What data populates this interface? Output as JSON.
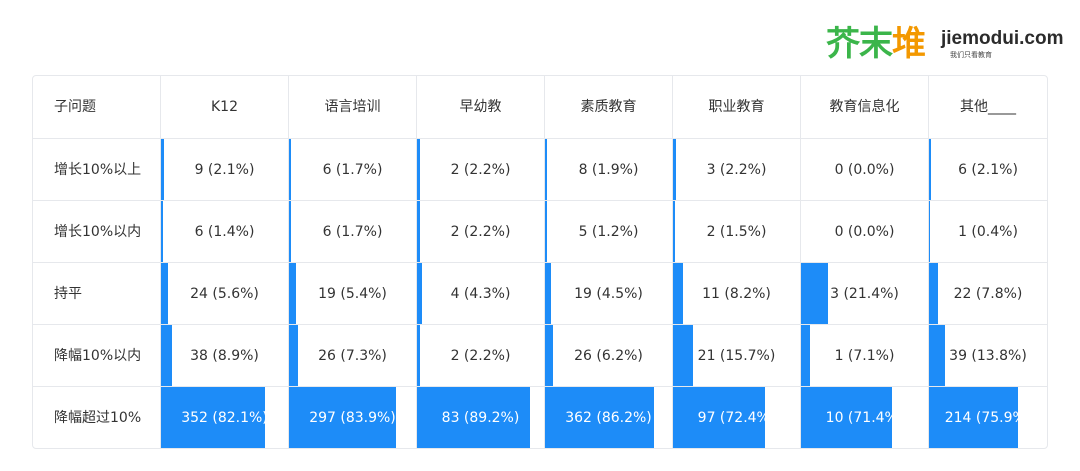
{
  "brand": {
    "logo_cn": [
      "芥",
      "末",
      "堆"
    ],
    "logo_en": "jiemodui.com",
    "logo_sub": "我们只看教育",
    "colors": {
      "green": "#3bb54a",
      "orange": "#f39800"
    }
  },
  "chart_data": {
    "type": "table",
    "corner_label": "子问题",
    "columns": [
      "K12",
      "语言培训",
      "早幼教",
      "素质教育",
      "职业教育",
      "教育信息化",
      "其他____"
    ],
    "rows": [
      {
        "label": "增长10%以上",
        "counts": [
          9,
          6,
          2,
          8,
          3,
          0,
          6
        ],
        "percents": [
          2.1,
          1.7,
          2.2,
          1.9,
          2.2,
          0.0,
          2.1
        ]
      },
      {
        "label": "增长10%以内",
        "counts": [
          6,
          6,
          2,
          5,
          2,
          0,
          1
        ],
        "percents": [
          1.4,
          1.7,
          2.2,
          1.2,
          1.5,
          0.0,
          0.4
        ]
      },
      {
        "label": "持平",
        "counts": [
          24,
          19,
          4,
          19,
          11,
          3,
          22
        ],
        "percents": [
          5.6,
          5.4,
          4.3,
          4.5,
          8.2,
          21.4,
          7.8
        ]
      },
      {
        "label": "降幅10%以内",
        "counts": [
          38,
          26,
          2,
          26,
          21,
          1,
          39
        ],
        "percents": [
          8.9,
          7.3,
          2.2,
          6.2,
          15.7,
          7.1,
          13.8
        ]
      },
      {
        "label": "降幅超过10%",
        "counts": [
          352,
          297,
          83,
          362,
          97,
          10,
          214
        ],
        "percents": [
          82.1,
          83.9,
          89.2,
          86.2,
          72.4,
          71.4,
          75.9
        ]
      }
    ],
    "cell_text": [
      [
        "9 (2.1%)",
        "6 (1.7%)",
        "2 (2.2%)",
        "8 (1.9%)",
        "3 (2.2%)",
        "0 (0.0%)",
        "6 (2.1%)"
      ],
      [
        "6 (1.4%)",
        "6 (1.7%)",
        "2 (2.2%)",
        "5 (1.2%)",
        "2 (1.5%)",
        "0 (0.0%)",
        "1 (0.4%)"
      ],
      [
        "24 (5.6%)",
        "19 (5.4%)",
        "4 (4.3%)",
        "19 (4.5%)",
        "11 (8.2%)",
        "3 (21.4%)",
        "22 (7.8%)"
      ],
      [
        "38 (8.9%)",
        "26 (7.3%)",
        "2 (2.2%)",
        "26 (6.2%)",
        "21 (15.7%)",
        "1 (7.1%)",
        "39 (13.8%)"
      ],
      [
        "352 (82.1%)",
        "297 (83.9%)",
        "83 (89.2%)",
        "362 (86.2%)",
        "97 (72.4%)",
        "10 (71.4%)",
        "214 (75.9%)"
      ]
    ],
    "bar_color": "#1d8cf8",
    "grid_color": "#e6e8ec"
  }
}
